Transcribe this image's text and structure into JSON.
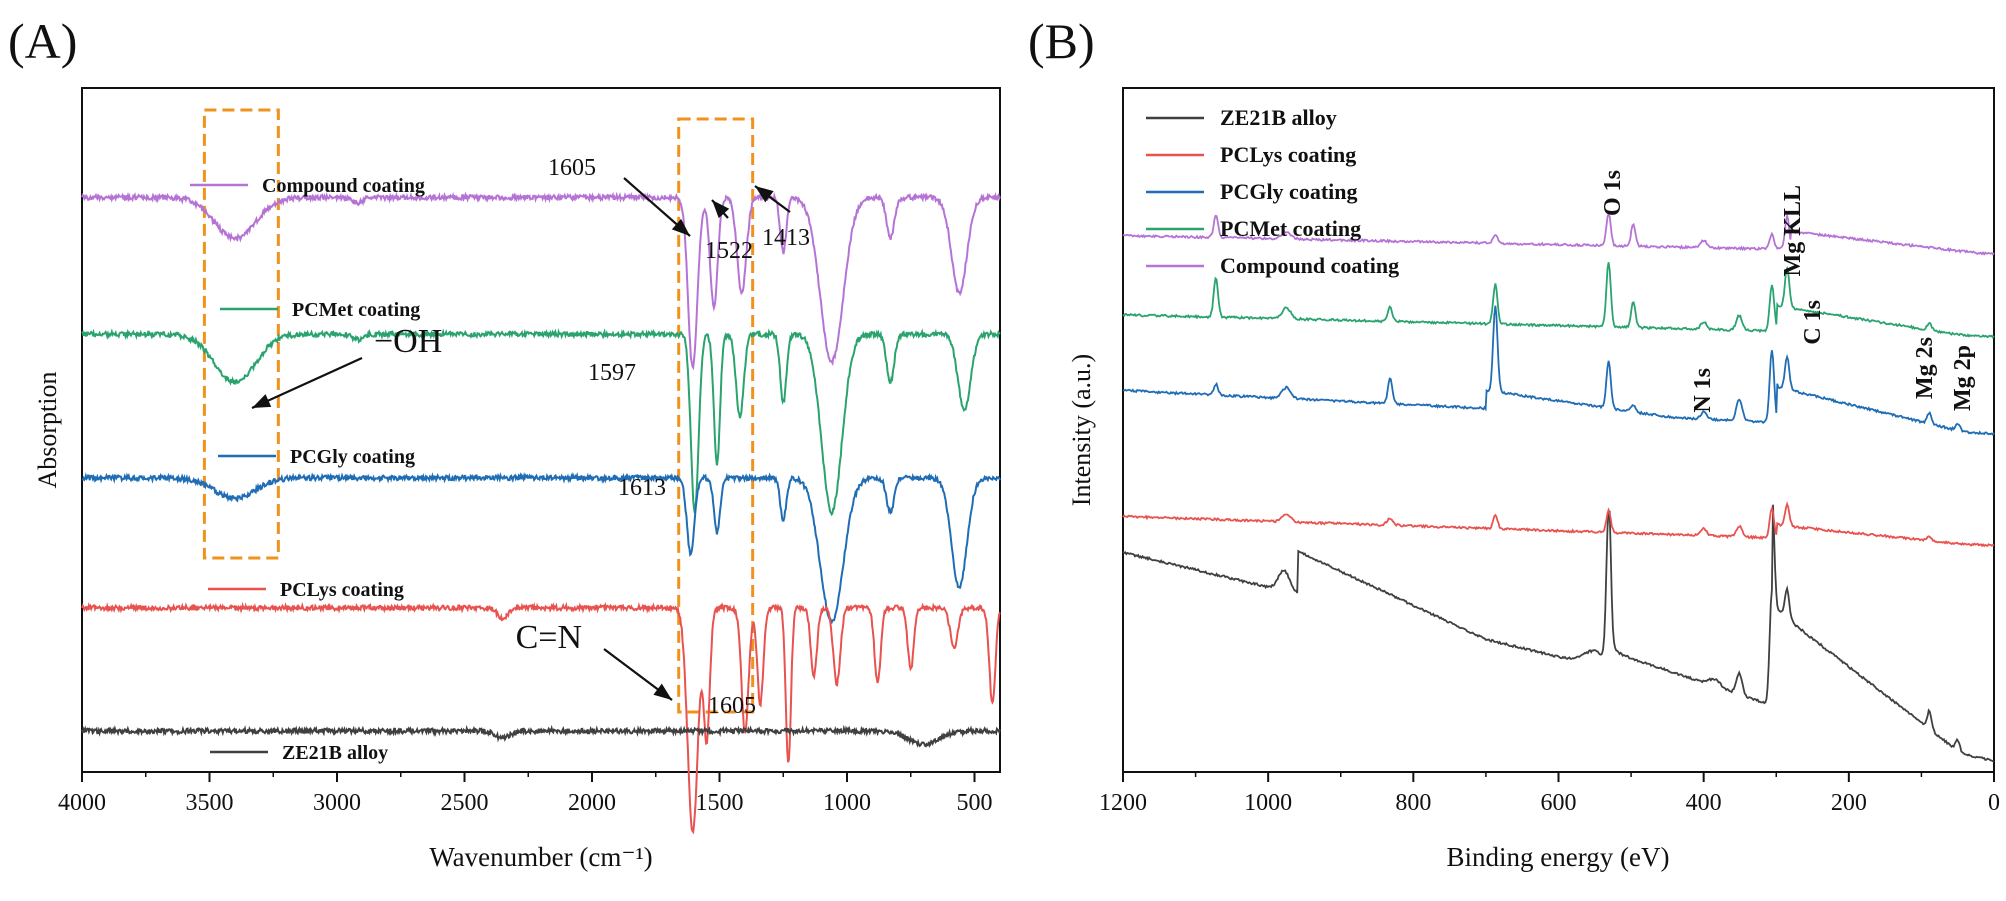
{
  "panels": {
    "a": {
      "label": "(A)"
    },
    "b": {
      "label": "(B)"
    }
  },
  "colors": {
    "ZE21B alloy": "#404040",
    "PCLys coating": "#e8524f",
    "PCGly coating": "#1f6db5",
    "PCMet coating": "#2aa36e",
    "Compound coating": "#b673d6",
    "highlight_box": "#f0921e"
  },
  "chart_data": [
    {
      "type": "line",
      "panel": "(A)",
      "title": "",
      "xlabel": "Wavenumber (cm⁻¹)",
      "ylabel": "Absorption",
      "xlim": [
        4000,
        400
      ],
      "x_reversed": true,
      "x_ticks": [
        4000,
        3500,
        3000,
        2500,
        2000,
        1500,
        1000,
        500
      ],
      "y_ticks_shown": false,
      "legend": "inline labels beside each trace",
      "series": [
        {
          "name": "Compound coating",
          "baseline": 4.2,
          "peaks": [
            [
              3400,
              0.3,
              80
            ],
            [
              2920,
              0.04,
              20
            ],
            [
              1605,
              1.25,
              18
            ],
            [
              1522,
              0.8,
              15
            ],
            [
              1413,
              0.7,
              18
            ],
            [
              1250,
              0.4,
              12
            ],
            [
              1060,
              1.2,
              45
            ],
            [
              830,
              0.3,
              15
            ],
            [
              560,
              0.7,
              30
            ]
          ]
        },
        {
          "name": "PCMet coating",
          "baseline": 3.2,
          "peaks": [
            [
              3400,
              0.35,
              80
            ],
            [
              2920,
              0.04,
              20
            ],
            [
              1597,
              1.3,
              15
            ],
            [
              1510,
              0.95,
              12
            ],
            [
              1420,
              0.6,
              15
            ],
            [
              1250,
              0.5,
              12
            ],
            [
              1060,
              1.3,
              40
            ],
            [
              830,
              0.35,
              15
            ],
            [
              540,
              0.55,
              25
            ]
          ]
        },
        {
          "name": "PCGly coating",
          "baseline": 2.15,
          "peaks": [
            [
              3400,
              0.15,
              80
            ],
            [
              1613,
              0.55,
              15
            ],
            [
              1510,
              0.4,
              12
            ],
            [
              1250,
              0.3,
              12
            ],
            [
              1060,
              1.05,
              45
            ],
            [
              830,
              0.25,
              15
            ],
            [
              560,
              0.8,
              30
            ]
          ]
        },
        {
          "name": "PCLys coating",
          "baseline": 1.2,
          "peaks": [
            [
              2350,
              0.08,
              20
            ],
            [
              1605,
              1.65,
              20
            ],
            [
              1550,
              0.95,
              12
            ],
            [
              1400,
              0.9,
              14
            ],
            [
              1340,
              0.7,
              12
            ],
            [
              1230,
              1.15,
              10
            ],
            [
              1130,
              0.5,
              12
            ],
            [
              1040,
              0.55,
              14
            ],
            [
              880,
              0.55,
              12
            ],
            [
              750,
              0.45,
              12
            ],
            [
              580,
              0.3,
              15
            ],
            [
              430,
              0.7,
              12
            ]
          ]
        },
        {
          "name": "ZE21B alloy",
          "baseline": 0.3,
          "peaks": [
            [
              2350,
              0.05,
              30
            ],
            [
              700,
              0.1,
              60
            ]
          ]
        }
      ],
      "annotations": [
        {
          "text": "1605",
          "x": 1605
        },
        {
          "text": "1522",
          "x": 1522
        },
        {
          "text": "1413",
          "x": 1413
        },
        {
          "text": "1597",
          "x": 1597
        },
        {
          "text": "−OH",
          "x": 3400
        },
        {
          "text": "1613",
          "x": 1613
        },
        {
          "text": "C=N",
          "x": 1605
        },
        {
          "text": "1605",
          "x": 1605
        }
      ],
      "highlight_regions": [
        [
          3520,
          3230
        ],
        [
          1660,
          1370
        ]
      ]
    },
    {
      "type": "line",
      "panel": "(B)",
      "title": "",
      "xlabel": "Binding energy (eV)",
      "ylabel": "Intensity (a.u.)",
      "xlim": [
        1200,
        0
      ],
      "x_reversed": true,
      "x_ticks": [
        1200,
        1000,
        800,
        600,
        400,
        200,
        0
      ],
      "y_ticks_shown": false,
      "legend": "top-left",
      "series": [
        {
          "name": "ZE21B alloy",
          "base_left": 3.05,
          "base_right": 0.15,
          "peaks": [
            [
              978,
              0.28,
              8
            ],
            [
              1072,
              0.0,
              5
            ],
            [
              531,
              2.1,
              3
            ],
            [
              550,
              0.2,
              15
            ],
            [
              351,
              0.3,
              4
            ],
            [
              385,
              0.1,
              8
            ],
            [
              306,
              1.6,
              3
            ],
            [
              285,
              0.4,
              3
            ],
            [
              89,
              0.25,
              3
            ],
            [
              50,
              0.15,
              3
            ]
          ],
          "step": [
            [
              960,
              0.6
            ],
            [
              530,
              0.25
            ],
            [
              306,
              1.4
            ]
          ]
        },
        {
          "name": "PCLys coating",
          "base_left": 3.55,
          "base_right": 3.15,
          "peaks": [
            [
              975,
              0.1,
              6
            ],
            [
              832,
              0.1,
              4
            ],
            [
              687,
              0.2,
              3
            ],
            [
              531,
              0.3,
              3
            ],
            [
              400,
              0.1,
              4
            ],
            [
              351,
              0.15,
              4
            ],
            [
              306,
              0.4,
              3
            ],
            [
              285,
              0.3,
              3
            ],
            [
              89,
              0.05,
              3
            ]
          ],
          "step": [
            [
              300,
              0.18
            ]
          ]
        },
        {
          "name": "PCGly coating",
          "base_left": 5.3,
          "base_right": 4.7,
          "peaks": [
            [
              1072,
              0.15,
              3
            ],
            [
              975,
              0.15,
              6
            ],
            [
              832,
              0.35,
              3
            ],
            [
              687,
              1.2,
              3
            ],
            [
              531,
              0.65,
              3
            ],
            [
              497,
              0.1,
              3
            ],
            [
              400,
              0.1,
              4
            ],
            [
              351,
              0.3,
              4
            ],
            [
              306,
              1.0,
              3
            ],
            [
              285,
              0.45,
              3
            ],
            [
              89,
              0.15,
              3
            ],
            [
              50,
              0.1,
              3
            ]
          ],
          "step": [
            [
              700,
              0.25
            ],
            [
              300,
              0.5
            ]
          ]
        },
        {
          "name": "PCMet coating",
          "base_left": 6.35,
          "base_right": 6.05,
          "peaks": [
            [
              1072,
              0.55,
              3
            ],
            [
              975,
              0.15,
              6
            ],
            [
              832,
              0.2,
              3
            ],
            [
              687,
              0.55,
              3
            ],
            [
              531,
              0.9,
              3
            ],
            [
              497,
              0.35,
              3
            ],
            [
              400,
              0.1,
              4
            ],
            [
              351,
              0.2,
              4
            ],
            [
              306,
              0.65,
              3
            ],
            [
              285,
              0.55,
              3
            ],
            [
              89,
              0.1,
              3
            ]
          ],
          "step": [
            [
              300,
              0.35
            ]
          ]
        },
        {
          "name": "Compound coating",
          "base_left": 7.45,
          "base_right": 7.2,
          "peaks": [
            [
              1072,
              0.3,
              3
            ],
            [
              975,
              0.1,
              6
            ],
            [
              687,
              0.12,
              3
            ],
            [
              531,
              0.45,
              3
            ],
            [
              497,
              0.3,
              3
            ],
            [
              400,
              0.1,
              4
            ],
            [
              306,
              0.2,
              3
            ],
            [
              285,
              0.45,
              3
            ]
          ],
          "step": [
            [
              280,
              0.25
            ]
          ]
        }
      ],
      "peak_labels": [
        {
          "text": "O 1s",
          "x": 531
        },
        {
          "text": "Mg KLL",
          "x": 306
        },
        {
          "text": "C 1s",
          "x": 285
        },
        {
          "text": "N 1s",
          "x": 400
        },
        {
          "text": "Mg 2s",
          "x": 89
        },
        {
          "text": "Mg 2p",
          "x": 50
        }
      ]
    }
  ]
}
